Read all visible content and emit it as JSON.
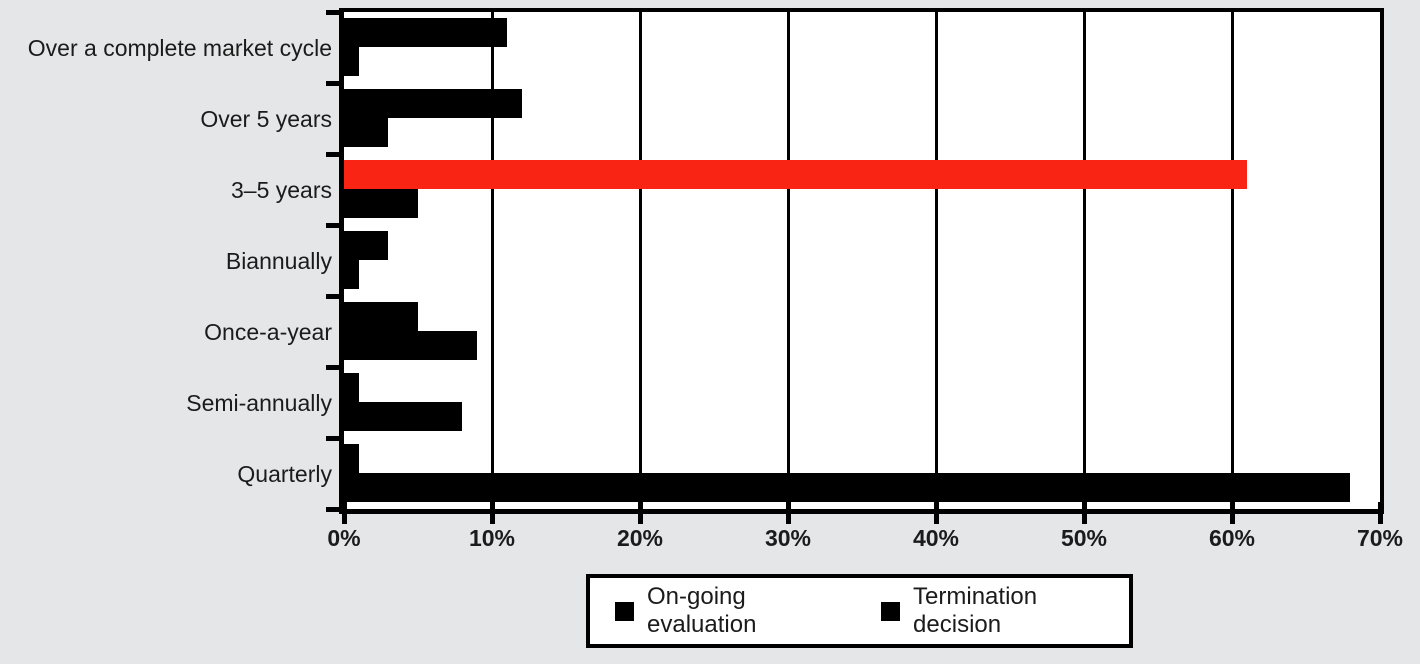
{
  "chart_data": {
    "type": "bar",
    "orientation": "horizontal",
    "title": "",
    "xlabel": "",
    "ylabel": "",
    "categories": [
      "Over a complete market cycle",
      "Over 5 years",
      "3–5 years",
      "Biannually",
      "Once-a-year",
      "Semi-annually",
      "Quarterly"
    ],
    "series": [
      {
        "name": "On-going evaluation",
        "position_in_group": "top",
        "values": [
          11,
          12,
          61,
          3,
          5,
          1,
          1
        ]
      },
      {
        "name": "Termination decision",
        "position_in_group": "bottom",
        "values": [
          1,
          3,
          5,
          1,
          9,
          8,
          68
        ]
      }
    ],
    "highlight": {
      "series": "On-going evaluation",
      "category": "3–5 years",
      "value": 61,
      "color": "#fa2414"
    },
    "xlim": [
      0,
      70
    ],
    "x_tick_step": 10,
    "x_tick_labels": [
      "0%",
      "10%",
      "20%",
      "30%",
      "40%",
      "50%",
      "60%",
      "70%"
    ],
    "grid": "vertical gridlines at every 10%",
    "legend_position": "bottom",
    "legend": [
      "On-going evaluation",
      "Termination decision"
    ]
  },
  "colors": {
    "page_background": "#e5e6e7",
    "plot_background": "#ffffff",
    "bar": "#000000",
    "highlight_bar": "#fa2414",
    "axis_and_grid": "#000000",
    "text": "#1b1b1b",
    "legend_background": "#ffffff",
    "legend_border": "#000000"
  }
}
